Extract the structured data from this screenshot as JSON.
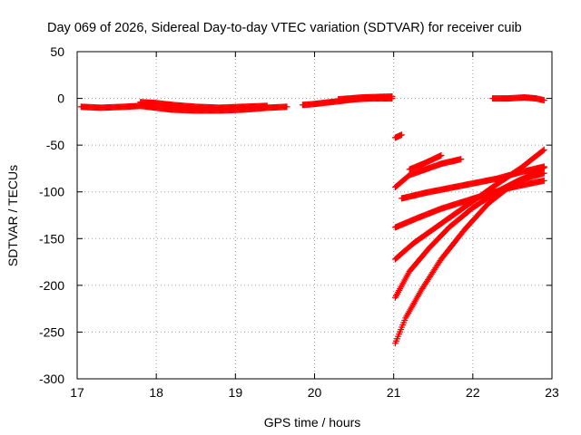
{
  "chart_data": {
    "type": "scatter",
    "title": "Day 069 of 2026, Sidereal Day-to-day VTEC variation (SDTVAR) for receiver cuib",
    "xlabel": "GPS time / hours",
    "ylabel": "SDTVAR / TECUs",
    "xlim": [
      17,
      23
    ],
    "ylim": [
      -300,
      50
    ],
    "xticks": [
      17,
      18,
      19,
      20,
      21,
      22,
      23
    ],
    "yticks": [
      -300,
      -250,
      -200,
      -150,
      -100,
      -50,
      0,
      50
    ],
    "grid": true,
    "marker": "+",
    "color": "#ff0000",
    "series": [
      {
        "points": [
          [
            17.05,
            -9
          ],
          [
            17.3,
            -10
          ],
          [
            17.6,
            -9
          ],
          [
            17.8,
            -8
          ],
          [
            18.0,
            -10
          ],
          [
            18.2,
            -12
          ],
          [
            18.5,
            -13
          ],
          [
            18.8,
            -13
          ],
          [
            19.1,
            -12
          ],
          [
            19.4,
            -10
          ],
          [
            19.65,
            -9
          ]
        ]
      },
      {
        "points": [
          [
            17.8,
            -4
          ],
          [
            18.0,
            -5
          ],
          [
            18.2,
            -7
          ],
          [
            18.5,
            -9
          ],
          [
            18.8,
            -10
          ],
          [
            19.1,
            -9
          ],
          [
            19.4,
            -8
          ]
        ]
      },
      {
        "points": [
          [
            19.85,
            -7
          ],
          [
            20.0,
            -6
          ],
          [
            20.2,
            -4
          ],
          [
            20.5,
            -1
          ],
          [
            20.7,
            0
          ],
          [
            20.98,
            0
          ]
        ]
      },
      {
        "points": [
          [
            20.3,
            -1
          ],
          [
            20.6,
            1
          ],
          [
            20.98,
            2
          ]
        ]
      },
      {
        "points": [
          [
            22.25,
            0
          ],
          [
            22.45,
            0
          ],
          [
            22.65,
            1
          ],
          [
            22.8,
            0
          ],
          [
            22.9,
            -2
          ]
        ]
      },
      {
        "points": [
          [
            21.02,
            -42
          ],
          [
            21.1,
            -39
          ]
        ]
      },
      {
        "points": [
          [
            21.02,
            -95
          ],
          [
            21.2,
            -82
          ],
          [
            21.4,
            -76
          ],
          [
            21.6,
            -70
          ],
          [
            21.85,
            -65
          ]
        ]
      },
      {
        "points": [
          [
            21.2,
            -76
          ],
          [
            21.4,
            -69
          ],
          [
            21.6,
            -61
          ]
        ]
      },
      {
        "points": [
          [
            21.1,
            -107
          ],
          [
            21.4,
            -101
          ],
          [
            21.7,
            -96
          ],
          [
            22.0,
            -91
          ],
          [
            22.3,
            -86
          ],
          [
            22.6,
            -79
          ],
          [
            22.9,
            -73
          ]
        ]
      },
      {
        "points": [
          [
            21.02,
            -138
          ],
          [
            21.3,
            -128
          ],
          [
            21.6,
            -118
          ],
          [
            21.9,
            -110
          ],
          [
            22.2,
            -102
          ],
          [
            22.5,
            -95
          ],
          [
            22.9,
            -88
          ]
        ]
      },
      {
        "points": [
          [
            21.02,
            -172
          ],
          [
            21.25,
            -155
          ],
          [
            21.5,
            -140
          ],
          [
            21.75,
            -125
          ],
          [
            22.0,
            -110
          ],
          [
            22.3,
            -92
          ],
          [
            22.6,
            -75
          ],
          [
            22.9,
            -55
          ]
        ]
      },
      {
        "points": [
          [
            21.02,
            -213
          ],
          [
            21.2,
            -185
          ],
          [
            21.45,
            -160
          ],
          [
            21.7,
            -138
          ],
          [
            22.0,
            -117
          ],
          [
            22.3,
            -100
          ],
          [
            22.6,
            -87
          ],
          [
            22.9,
            -80
          ]
        ]
      },
      {
        "points": [
          [
            21.02,
            -262
          ],
          [
            21.15,
            -235
          ],
          [
            21.35,
            -205
          ],
          [
            21.6,
            -172
          ],
          [
            21.9,
            -140
          ],
          [
            22.2,
            -112
          ],
          [
            22.5,
            -92
          ],
          [
            22.9,
            -74
          ]
        ]
      }
    ]
  }
}
